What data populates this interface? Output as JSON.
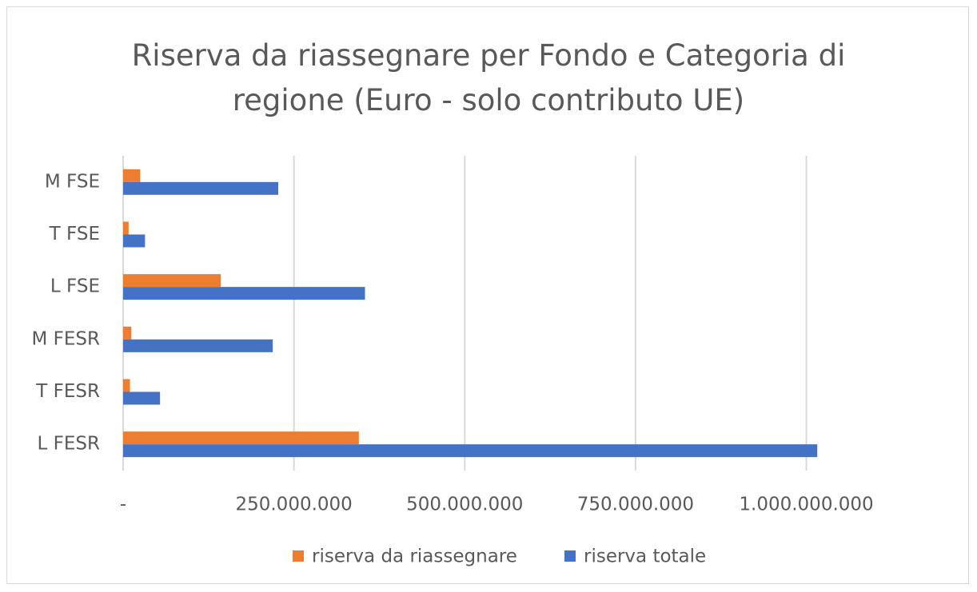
{
  "chart_data": {
    "type": "barh",
    "title": "Riserva da riassegnare per Fondo e Categoria di regione (Euro - solo contributo UE)",
    "categories": [
      "M FSE",
      "T FSE",
      "L FSE",
      "M FESR",
      "T FESR",
      "L FESR"
    ],
    "series": [
      {
        "name": "riserva da riassegnare",
        "color": "#ed7d31",
        "values": [
          25000000,
          8000000,
          143000000,
          12000000,
          10000000,
          345000000
        ]
      },
      {
        "name": "riserva totale",
        "color": "#4472c4",
        "values": [
          227000000,
          32000000,
          354000000,
          219000000,
          54000000,
          1016000000
        ]
      }
    ],
    "xlim": [
      0,
      1100000000
    ],
    "xticks": [
      {
        "value": 0,
        "label": "-"
      },
      {
        "value": 250000000,
        "label": "250.000.000"
      },
      {
        "value": 500000000,
        "label": "500.000.000"
      },
      {
        "value": 750000000,
        "label": "750.000.000"
      },
      {
        "value": 1000000000,
        "label": "1.000.000.000"
      }
    ],
    "grid": true,
    "legend": "bottom"
  }
}
